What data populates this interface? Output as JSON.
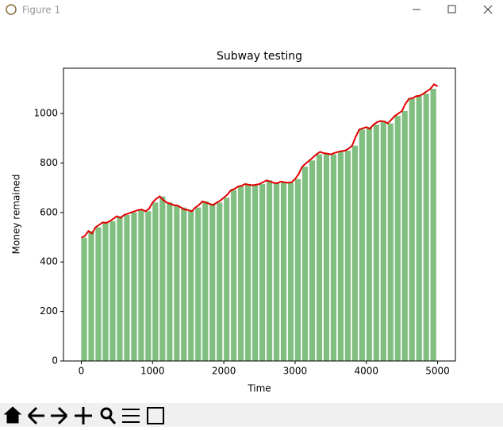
{
  "window": {
    "title": "Figure 1"
  },
  "chart_data": {
    "type": "bar",
    "title": "Subway testing",
    "x_label": "Time",
    "y_label": "Money remained",
    "xlim": [
      -250,
      5250
    ],
    "ylim": [
      0,
      1183
    ],
    "xticks": [
      0,
      1000,
      2000,
      3000,
      4000,
      5000
    ],
    "yticks": [
      0,
      200,
      400,
      600,
      800,
      1000
    ],
    "bars": {
      "color": "#80bf80",
      "x": [
        0,
        100,
        200,
        300,
        400,
        500,
        600,
        700,
        800,
        900,
        1000,
        1100,
        1200,
        1300,
        1400,
        1500,
        1600,
        1700,
        1800,
        1900,
        2000,
        2100,
        2200,
        2300,
        2400,
        2500,
        2600,
        2700,
        2800,
        2900,
        3000,
        3100,
        3200,
        3300,
        3400,
        3500,
        3600,
        3700,
        3800,
        3900,
        4000,
        4100,
        4200,
        4300,
        4400,
        4500,
        4600,
        4700,
        4800,
        4900
      ],
      "values": [
        498,
        525,
        540,
        560,
        565,
        585,
        590,
        600,
        610,
        605,
        640,
        665,
        640,
        630,
        620,
        610,
        620,
        645,
        635,
        640,
        660,
        690,
        705,
        715,
        710,
        715,
        730,
        720,
        725,
        720,
        735,
        785,
        810,
        835,
        840,
        835,
        845,
        850,
        870,
        935,
        945,
        955,
        970,
        960,
        990,
        1010,
        1060,
        1070,
        1080,
        1100
      ]
    },
    "line": {
      "color": "#e00000",
      "x": [
        0,
        50,
        100,
        150,
        200,
        250,
        300,
        350,
        400,
        450,
        500,
        550,
        600,
        650,
        700,
        750,
        800,
        850,
        900,
        950,
        1000,
        1050,
        1100,
        1150,
        1200,
        1250,
        1300,
        1350,
        1400,
        1450,
        1500,
        1550,
        1600,
        1650,
        1700,
        1750,
        1800,
        1850,
        1900,
        1950,
        2000,
        2050,
        2100,
        2150,
        2200,
        2250,
        2300,
        2350,
        2400,
        2450,
        2500,
        2550,
        2600,
        2650,
        2700,
        2750,
        2800,
        2850,
        2900,
        2950,
        3000,
        3050,
        3100,
        3150,
        3200,
        3250,
        3300,
        3350,
        3400,
        3450,
        3500,
        3550,
        3600,
        3650,
        3700,
        3750,
        3800,
        3850,
        3900,
        3950,
        4000,
        4050,
        4100,
        4150,
        4200,
        4250,
        4300,
        4350,
        4400,
        4450,
        4500,
        4550,
        4600,
        4650,
        4700,
        4750,
        4800,
        4850,
        4900,
        4950,
        5000
      ],
      "values": [
        498,
        505,
        525,
        515,
        540,
        550,
        560,
        558,
        565,
        575,
        585,
        578,
        590,
        595,
        600,
        605,
        610,
        612,
        605,
        615,
        640,
        655,
        665,
        650,
        640,
        635,
        630,
        628,
        620,
        612,
        610,
        605,
        620,
        630,
        645,
        640,
        635,
        630,
        640,
        648,
        660,
        672,
        690,
        695,
        705,
        708,
        715,
        712,
        710,
        712,
        715,
        722,
        730,
        725,
        720,
        718,
        725,
        722,
        720,
        722,
        735,
        755,
        785,
        798,
        810,
        822,
        835,
        845,
        840,
        838,
        835,
        840,
        845,
        848,
        850,
        858,
        870,
        905,
        935,
        940,
        945,
        938,
        955,
        965,
        970,
        968,
        960,
        975,
        990,
        1000,
        1010,
        1040,
        1060,
        1062,
        1070,
        1072,
        1080,
        1090,
        1100,
        1118,
        1110
      ]
    }
  }
}
